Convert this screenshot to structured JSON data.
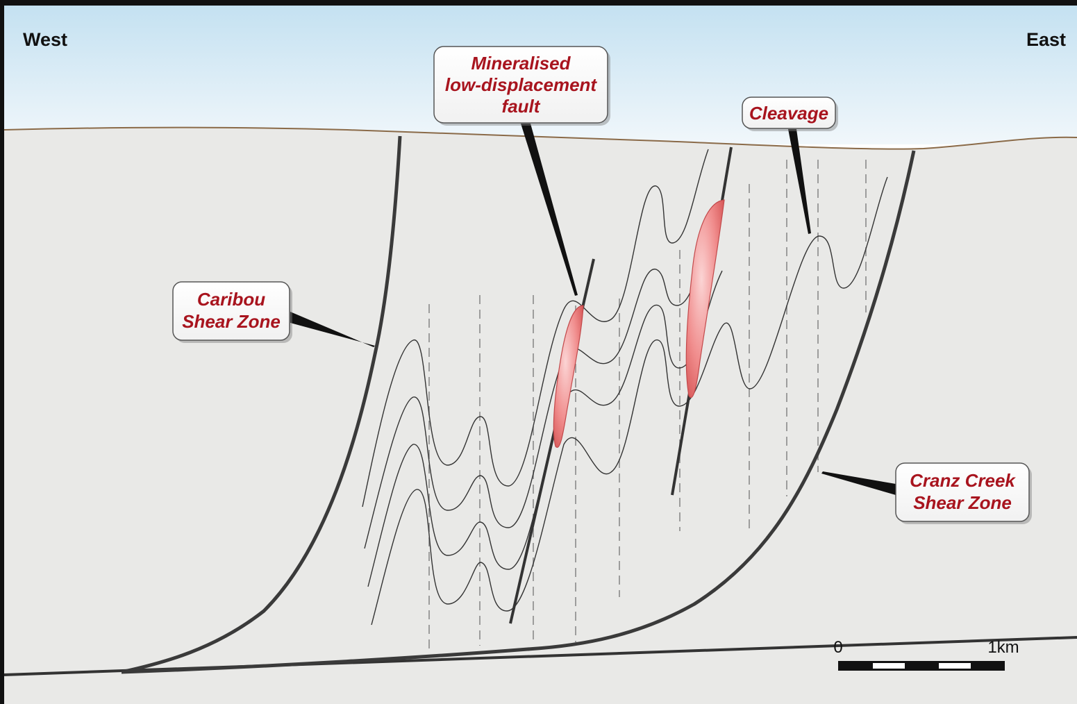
{
  "directions": {
    "west": "West",
    "east": "East"
  },
  "callouts": {
    "mineralised_fault": [
      "Mineralised",
      "low-displacement",
      "fault"
    ],
    "cleavage": [
      "Cleavage"
    ],
    "caribou": [
      "Caribou",
      "Shear Zone"
    ],
    "cranz": [
      "Cranz Creek",
      "Shear Zone"
    ]
  },
  "scale_bar": {
    "start_label": "0",
    "end_label": "1km"
  },
  "colors": {
    "sky_top": "#c4e1f1",
    "sky_bottom": "#f1f7fb",
    "ground": "#e9e9e7",
    "ground_line": "#8a6a48",
    "shear_zone": "#3a3a3a",
    "ore_body": "#ee8f8f",
    "label_text": "#a8141e"
  }
}
